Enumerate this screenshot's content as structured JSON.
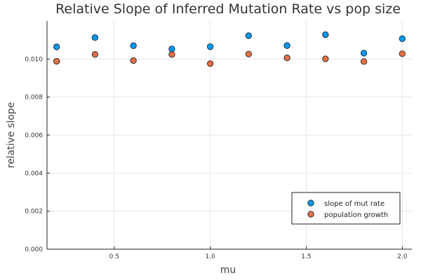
{
  "chart_data": {
    "type": "scatter",
    "title": "Relative Slope of Inferred Mutation Rate vs pop size",
    "xlabel": "mu",
    "ylabel": "relative slope",
    "xlim": [
      0.15,
      2.05
    ],
    "ylim": [
      0.0,
      0.012
    ],
    "xticks": [
      0.5,
      1.0,
      1.5,
      2.0
    ],
    "xtick_labels": [
      "0.5",
      "1.0",
      "1.5",
      "2.0"
    ],
    "yticks": [
      0.0,
      0.002,
      0.004,
      0.006,
      0.008,
      0.01
    ],
    "ytick_labels": [
      "0.000",
      "0.002",
      "0.004",
      "0.006",
      "0.008",
      "0.010"
    ],
    "grid": true,
    "legend_position": "bottom-right",
    "x": [
      0.2,
      0.4,
      0.6,
      0.8,
      1.0,
      1.2,
      1.4,
      1.6,
      1.8,
      2.0
    ],
    "series": [
      {
        "name": "slope of mut rate",
        "color": "#009AFA",
        "values": [
          0.01064,
          0.01113,
          0.0107,
          0.01053,
          0.01065,
          0.01123,
          0.01071,
          0.01128,
          0.01031,
          0.01107
        ]
      },
      {
        "name": "population growth",
        "color": "#E36F47",
        "values": [
          0.00988,
          0.01024,
          0.00992,
          0.01024,
          0.00976,
          0.01026,
          0.01006,
          0.01001,
          0.00987,
          0.01028
        ]
      }
    ]
  }
}
